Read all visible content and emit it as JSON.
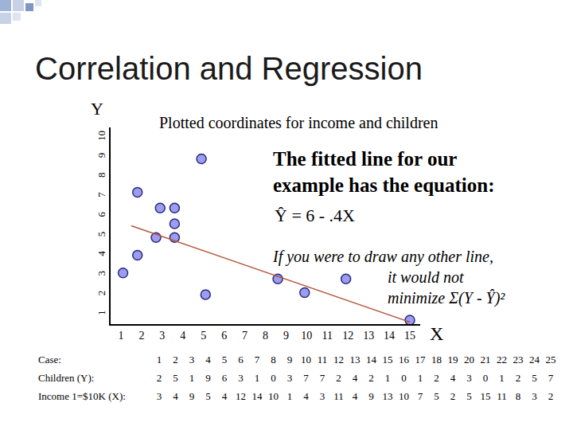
{
  "heading": "Correlation and Regression",
  "chart_data": {
    "type": "scatter",
    "title": "Plotted coordinates for income and children",
    "x_label": "X",
    "y_label": "Y",
    "series": [
      {
        "type": "scatter",
        "marker": "circle",
        "color": "#9c9cf2",
        "x": [
          1.1,
          1.8,
          1.8,
          2.7,
          2.9,
          3.6,
          3.6,
          3.6,
          4.9,
          5.1,
          8.6,
          9.9,
          11.9,
          15.0
        ],
        "values": [
          3.1,
          7.2,
          4.0,
          4.9,
          6.4,
          6.4,
          5.6,
          4.9,
          8.9,
          2.0,
          2.8,
          2.1,
          2.8,
          0.7
        ]
      },
      {
        "type": "line",
        "line_style": "solid",
        "color": "#b4583c",
        "x": [
          1.5,
          15.0
        ],
        "values": [
          5.5,
          0.6
        ]
      }
    ],
    "xlim": [
      0.5,
      15.5
    ],
    "xticks": [
      1,
      2,
      3,
      4,
      5,
      6,
      7,
      8,
      9,
      10,
      11,
      12,
      13,
      14,
      15
    ],
    "ylim": [
      0.5,
      10.5
    ],
    "yticks": [
      1,
      2,
      3,
      4,
      5,
      6,
      7,
      8,
      9,
      10
    ],
    "grid": false,
    "annotations": [
      [
        "The fitted line for our",
        "example has the equation:"
      ],
      [
        "Ŷ = 6 - .4X"
      ],
      [
        "If you were to draw any other line,",
        "it would not",
        "minimize Σ(Y - Ŷ)²"
      ]
    ]
  },
  "table": {
    "rows": [
      {
        "label": "Case:",
        "values": [
          1,
          2,
          3,
          4,
          5,
          6,
          7,
          8,
          9,
          10,
          11,
          12,
          13,
          14,
          15,
          16,
          17,
          18,
          19,
          20,
          21,
          22,
          23,
          24,
          25
        ]
      },
      {
        "label": "Children (Y):",
        "values": [
          2,
          5,
          1,
          9,
          6,
          3,
          1,
          0,
          3,
          7,
          7,
          2,
          4,
          2,
          1,
          0,
          1,
          2,
          4,
          3,
          0,
          1,
          2,
          5,
          7
        ]
      },
      {
        "label": "Income 1=$10K (X):",
        "values": [
          3,
          4,
          9,
          5,
          4,
          12,
          14,
          10,
          1,
          4,
          3,
          11,
          4,
          9,
          13,
          10,
          7,
          5,
          2,
          5,
          15,
          11,
          8,
          3,
          2
        ]
      }
    ]
  }
}
